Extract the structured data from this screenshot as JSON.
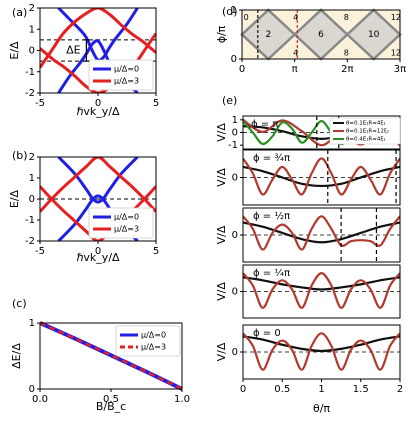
{
  "chart_data": [
    {
      "panel": "(a)",
      "type": "line",
      "xlabel": "ℏvk_y/Δ",
      "ylabel": "E/Δ",
      "xlim": [
        -5,
        5
      ],
      "ylim": [
        -2,
        2
      ],
      "xticks": [
        -5,
        0,
        5
      ],
      "yticks": [
        -2,
        -1,
        0,
        1,
        2
      ],
      "legend": {
        "position": "bottom-right",
        "entries": [
          "μ/Δ=0",
          "μ/Δ=3"
        ]
      },
      "annotation": "ΔE",
      "dashed_levels": [
        0.5,
        -0.5
      ],
      "series": [
        {
          "name": "μ/Δ=0",
          "color": "#1f1fe6",
          "curves": [
            {
              "x": [
                -3.4,
                -2.5,
                -1.5,
                -1,
                -0.5,
                0,
                0.5,
                1,
                1.5,
                2.5,
                3.4
              ],
              "y": [
                2.0,
                1.5,
                0.95,
                0.6,
                0.0,
                -0.45,
                -0.3,
                0.15,
                0.55,
                1.25,
                2.0
              ]
            },
            {
              "x": [
                -3.4,
                -2.5,
                -1.5,
                -1,
                -0.5,
                0,
                0.5,
                1,
                1.5,
                2.5,
                3.4
              ],
              "y": [
                -2.0,
                -1.25,
                -0.55,
                -0.15,
                0.3,
                0.45,
                0.0,
                -0.6,
                -0.95,
                -1.5,
                -2.0
              ]
            }
          ]
        },
        {
          "name": "μ/Δ=3",
          "color": "#e62020",
          "curves": [
            {
              "x": [
                -5,
                -3.8,
                -3,
                -2,
                -1,
                0,
                1,
                2,
                3,
                4,
                5
              ],
              "y": [
                0.1,
                -0.45,
                -0.75,
                -1.2,
                -1.7,
                -2.0,
                -1.75,
                -1.35,
                -0.8,
                0.0,
                0.8
              ]
            },
            {
              "x": [
                -5,
                -4,
                -3,
                -2,
                -1,
                0,
                1,
                2,
                3,
                3.8,
                5
              ],
              "y": [
                -0.8,
                0.0,
                0.8,
                1.35,
                1.75,
                2.0,
                1.7,
                1.2,
                0.75,
                0.45,
                -0.1
              ]
            }
          ]
        }
      ]
    },
    {
      "panel": "(b)",
      "type": "line",
      "xlabel": "ℏvk_y/Δ",
      "ylabel": "E/Δ",
      "xlim": [
        -5,
        5
      ],
      "ylim": [
        -2,
        2
      ],
      "xticks": [
        -5,
        0,
        5
      ],
      "yticks": [
        -2,
        -1,
        0,
        1,
        2
      ],
      "legend": {
        "position": "bottom-right",
        "entries": [
          "μ/Δ=0",
          "μ/Δ=3"
        ]
      },
      "dashed_levels": [
        0
      ],
      "series": [
        {
          "name": "μ/Δ=0",
          "color": "#1f1fe6",
          "curves": [
            {
              "x": [
                -3.4,
                -2,
                -1,
                -0.5,
                0,
                0.5,
                1,
                2,
                3.4
              ],
              "y": [
                2.0,
                1.2,
                0.45,
                0.05,
                -0.15,
                0.05,
                0.45,
                1.2,
                2.0
              ]
            },
            {
              "x": [
                -3.4,
                -2,
                -1,
                -0.5,
                0,
                0.5,
                1,
                2,
                3.4
              ],
              "y": [
                -2.0,
                -1.2,
                -0.45,
                -0.05,
                0.15,
                -0.05,
                -0.45,
                -1.2,
                -2.0
              ]
            }
          ]
        },
        {
          "name": "μ/Δ=3",
          "color": "#e62020",
          "curves": [
            {
              "x": [
                -5,
                -4,
                -3,
                -2,
                -1,
                0,
                1,
                2,
                3,
                4,
                5
              ],
              "y": [
                0.6,
                0.0,
                -0.55,
                -1.05,
                -1.55,
                -2.0,
                -1.55,
                -1.05,
                -0.55,
                0.0,
                0.6
              ]
            },
            {
              "x": [
                -5,
                -4,
                -3,
                -2,
                -1,
                0,
                1,
                2,
                3,
                4,
                5
              ],
              "y": [
                -0.6,
                0.0,
                0.55,
                1.05,
                1.55,
                2.0,
                1.55,
                1.05,
                0.55,
                0.0,
                -0.6
              ]
            }
          ]
        }
      ]
    },
    {
      "panel": "(c)",
      "type": "line",
      "xlabel": "B/B_c",
      "ylabel": "ΔE/Δ",
      "xlim": [
        0,
        1
      ],
      "ylim": [
        0,
        1
      ],
      "xticks": [
        0.0,
        0.5,
        1.0
      ],
      "yticks": [
        0,
        1
      ],
      "legend": {
        "position": "top-right",
        "entries": [
          "μ/Δ=0",
          "μ/Δ=3"
        ]
      },
      "series": [
        {
          "name": "μ/Δ=0",
          "color": "#1f1fe6",
          "style": "solid",
          "x": [
            0,
            0.25,
            0.5,
            0.75,
            1.0
          ],
          "y": [
            1.0,
            0.76,
            0.51,
            0.26,
            0.0
          ]
        },
        {
          "name": "μ/Δ=3",
          "color": "#e62020",
          "style": "dashed",
          "x": [
            0,
            0.25,
            0.5,
            0.75,
            1.0
          ],
          "y": [
            1.0,
            0.76,
            0.51,
            0.26,
            0.0
          ]
        }
      ]
    },
    {
      "panel": "(d)",
      "type": "diagram",
      "xlabel": "",
      "ylabel": "ϕ/π",
      "xlim": [
        0,
        3
      ],
      "ylim": [
        0,
        1
      ],
      "xtick_labels": [
        "0",
        "π",
        "2π",
        "3π"
      ],
      "yticks": [
        0,
        1
      ],
      "diamond_labels": [
        "2",
        "6",
        "10"
      ],
      "region_labels": [
        "0",
        "4",
        "4",
        "8",
        "8",
        "12",
        "12"
      ],
      "vlines": [
        {
          "x": 0.3,
          "color": "#111111"
        },
        {
          "x": 1.05,
          "color": "#d62728"
        }
      ],
      "fill_color": "#fbf2dc",
      "edge_color": "#888888"
    },
    {
      "panel": "(e)",
      "type": "line",
      "xlabel": "θ/π",
      "ylabel": "V/Δ",
      "xlim": [
        0,
        2
      ],
      "xticks": [
        0.0,
        0.5,
        1.0,
        1.5,
        2.0
      ],
      "legend": {
        "position": "top-right",
        "entries": [
          "θ=0.1E₁R=4ξ₁",
          "θ=0.1E₁R=12ξ₁",
          "θ=0.4E₁R=4ξ₁"
        ]
      },
      "subpanels": [
        {
          "label": "ϕ = π",
          "yticks": [
            1,
            0,
            -1
          ],
          "ylim": [
            -1.3,
            1.3
          ],
          "vlines": [
            0.94,
            1.22
          ],
          "series": [
            {
              "name": "θ=0.1E₁R=4ξ₁",
              "color": "#111111",
              "x": [
                0,
                0.25,
                0.5,
                0.75,
                1.0,
                1.25,
                1.5,
                1.75,
                2.0
              ],
              "y": [
                0.5,
                0.4,
                0.1,
                -0.3,
                -0.5,
                -0.3,
                0.1,
                0.4,
                0.5
              ]
            },
            {
              "name": "θ=0.1E₁R=12ξ₁",
              "color": "#b03a2e",
              "x": [
                0,
                0.25,
                0.5,
                0.75,
                1.0,
                1.25,
                1.5,
                1.75,
                2.0
              ],
              "y": [
                1.0,
                0.05,
                0.95,
                0.1,
                -1.0,
                -0.1,
                -0.95,
                -0.05,
                -1.0
              ]
            },
            {
              "name": "θ=0.4E₁R=4ξ₁",
              "color": "#2a8f22",
              "x": [
                0,
                0.125,
                0.25,
                0.375,
                0.5,
                0.625,
                0.75,
                0.875,
                1.0,
                1.125,
                1.25,
                1.375,
                1.5,
                1.625,
                1.75,
                1.875,
                2.0
              ],
              "y": [
                0.9,
                0.0,
                -0.9,
                -0.3,
                0.8,
                0.3,
                -0.8,
                0.0,
                0.9,
                0.0,
                -0.9,
                -0.3,
                0.8,
                0.3,
                -0.8,
                0.0,
                0.9
              ]
            }
          ]
        },
        {
          "label": "ϕ = ¾π",
          "yticks": [
            0
          ],
          "ylim": [
            -1.3,
            1.3
          ],
          "vlines": [
            1.08,
            1.95
          ],
          "series": [
            {
              "name": "θ=0.1E₁R=4ξ₁",
              "color": "#111111",
              "x": [
                0,
                0.25,
                0.5,
                0.75,
                1.0,
                1.25,
                1.5,
                1.75,
                2.0
              ],
              "y": [
                0.5,
                0.3,
                0.0,
                -0.3,
                -0.4,
                -0.3,
                0.0,
                0.3,
                0.5
              ]
            },
            {
              "name": "θ=0.1E₁R=12ξ₁",
              "color": "#b03a2e",
              "x": [
                0,
                0.125,
                0.25,
                0.375,
                0.5,
                0.625,
                0.75,
                0.875,
                1.0,
                1.125,
                1.25,
                1.375,
                1.5,
                1.625,
                1.75,
                1.875,
                2.0
              ],
              "y": [
                0.9,
                0.2,
                -0.8,
                -0.1,
                0.5,
                -0.1,
                -0.8,
                0.2,
                0.9,
                0.2,
                -0.8,
                -0.1,
                0.5,
                -0.1,
                -0.8,
                0.2,
                0.9
              ]
            }
          ]
        },
        {
          "label": "ϕ = ½π",
          "yticks": [
            0
          ],
          "ylim": [
            -1.3,
            1.3
          ],
          "vlines": [
            1.25,
            1.7
          ],
          "series": [
            {
              "name": "θ=0.1E₁R=4ξ₁",
              "color": "#111111",
              "x": [
                0,
                0.25,
                0.5,
                0.75,
                1.0,
                1.25,
                1.5,
                1.75,
                2.0
              ],
              "y": [
                0.6,
                0.4,
                0.1,
                -0.2,
                -0.35,
                -0.2,
                0.1,
                0.4,
                0.6
              ]
            },
            {
              "name": "θ=0.1E₁R=12ξ₁",
              "color": "#b03a2e",
              "x": [
                0,
                0.125,
                0.25,
                0.375,
                0.5,
                0.625,
                0.75,
                0.875,
                1.0,
                1.125,
                1.25,
                1.375,
                1.5,
                1.625,
                1.75,
                1.875,
                2.0
              ],
              "y": [
                0.9,
                0.3,
                -0.7,
                0.1,
                0.5,
                0.1,
                -0.7,
                0.3,
                0.9,
                0.3,
                -0.5,
                -0.3,
                -0.25,
                -0.3,
                -0.5,
                0.3,
                0.9
              ]
            }
          ]
        },
        {
          "label": "ϕ = ¼π",
          "yticks": [
            0
          ],
          "ylim": [
            -1.3,
            1.3
          ],
          "vlines": [],
          "series": [
            {
              "name": "θ=0.1E₁R=4ξ₁",
              "color": "#111111",
              "x": [
                0,
                0.25,
                0.5,
                0.75,
                1.0,
                1.25,
                1.5,
                1.75,
                2.0
              ],
              "y": [
                0.7,
                0.55,
                0.35,
                0.2,
                0.1,
                0.2,
                0.35,
                0.55,
                0.7
              ]
            },
            {
              "name": "θ=0.1E₁R=12ξ₁",
              "color": "#b03a2e",
              "x": [
                0,
                0.125,
                0.25,
                0.375,
                0.5,
                0.625,
                0.75,
                0.875,
                1.0,
                1.125,
                1.25,
                1.375,
                1.5,
                1.625,
                1.75,
                1.875,
                2.0
              ],
              "y": [
                0.9,
                0.3,
                -0.8,
                0.1,
                0.55,
                0.1,
                -0.8,
                0.3,
                0.9,
                0.3,
                -0.8,
                0.1,
                0.55,
                0.1,
                -0.8,
                0.3,
                0.9
              ]
            }
          ]
        },
        {
          "label": "ϕ = 0",
          "yticks": [
            0
          ],
          "ylim": [
            -1.3,
            1.3
          ],
          "vlines": [],
          "series": [
            {
              "name": "θ=0.1E₁R=4ξ₁",
              "color": "#111111",
              "x": [
                0,
                0.25,
                0.5,
                0.75,
                1.0,
                1.25,
                1.5,
                1.75,
                2.0
              ],
              "y": [
                0.75,
                0.6,
                0.35,
                0.15,
                0.05,
                0.15,
                0.35,
                0.6,
                0.75
              ]
            },
            {
              "name": "θ=0.1E₁R=12ξ₁",
              "color": "#b03a2e",
              "x": [
                0,
                0.125,
                0.25,
                0.375,
                0.5,
                0.625,
                0.75,
                0.875,
                1.0,
                1.125,
                1.25,
                1.375,
                1.5,
                1.625,
                1.75,
                1.875,
                2.0
              ],
              "y": [
                0.9,
                0.3,
                -0.85,
                0.1,
                0.55,
                0.1,
                -0.85,
                0.3,
                0.9,
                0.3,
                -0.85,
                0.1,
                0.55,
                0.1,
                -0.85,
                0.3,
                0.9
              ]
            }
          ]
        }
      ]
    }
  ]
}
